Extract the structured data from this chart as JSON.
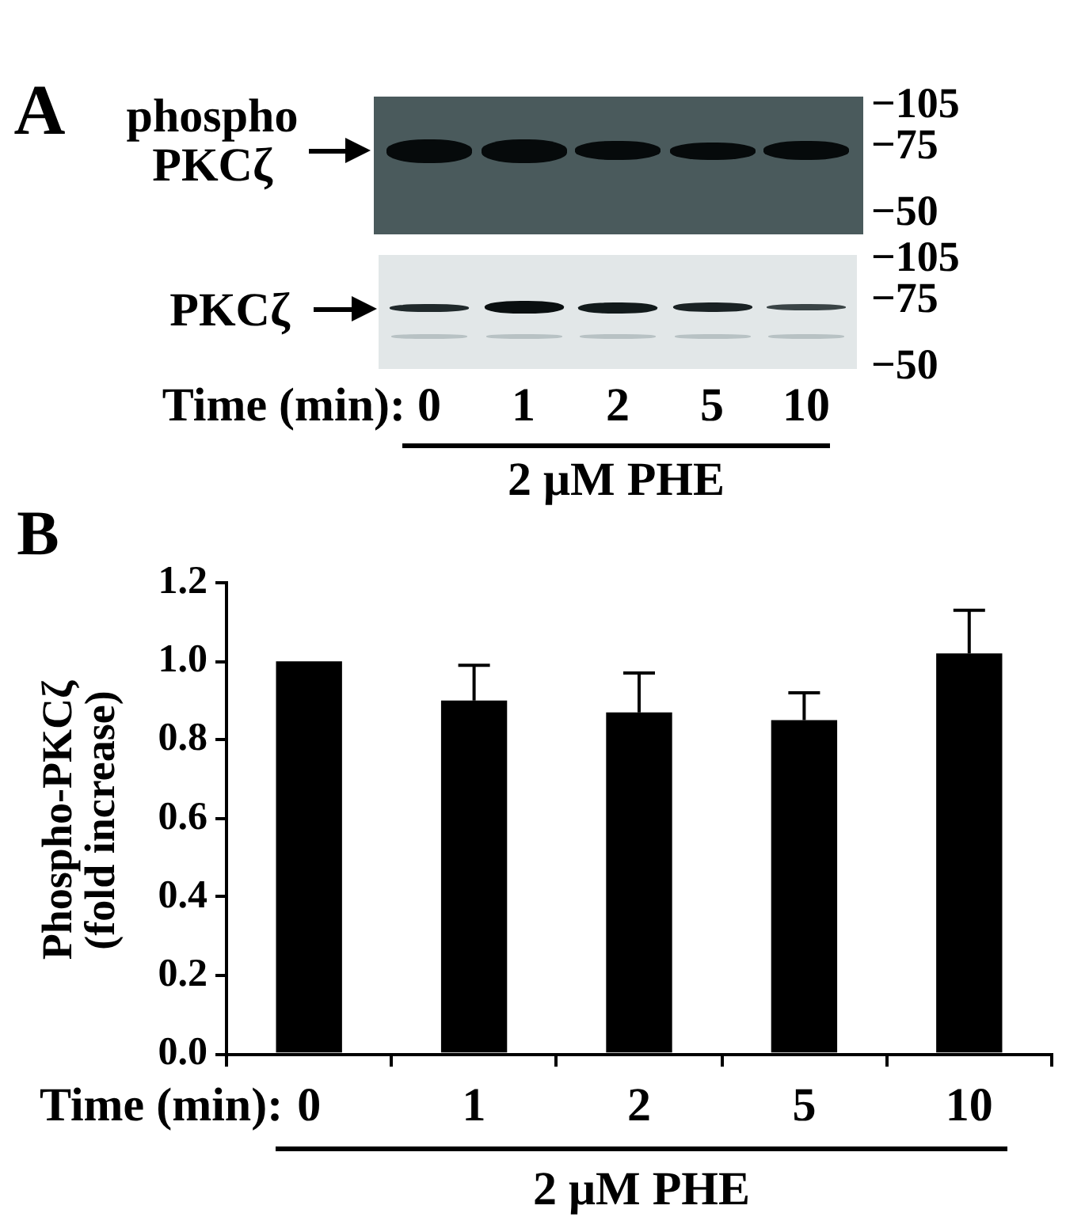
{
  "chart_data": [
    {
      "type": "other",
      "title": "A",
      "categories": [
        "0",
        "1",
        "2",
        "5",
        "10"
      ],
      "xlabel": "Time (min):",
      "annotations": [
        "phospho PKCζ",
        "PKCζ",
        "−105",
        "−75",
        "−50",
        "−105",
        "−75",
        "−50",
        "2 μM PHE"
      ]
    },
    {
      "type": "bar",
      "title": "B",
      "categories": [
        "0",
        "1",
        "2",
        "5",
        "10"
      ],
      "values": [
        1.0,
        0.9,
        0.87,
        0.85,
        1.02
      ],
      "errors": [
        null,
        0.09,
        0.1,
        0.07,
        0.11
      ],
      "color": "#000000",
      "ylim": [
        0,
        1.2
      ],
      "yticks": [
        {
          "value": 0,
          "label": "0.0"
        },
        {
          "value": 0.2,
          "label": "0.2"
        },
        {
          "value": 0.4,
          "label": "0.4"
        },
        {
          "value": 0.6,
          "label": "0.6"
        },
        {
          "value": 0.8,
          "label": "0.8"
        },
        {
          "value": 1.0,
          "label": "1.0"
        },
        {
          "value": 1.2,
          "label": "1.2"
        }
      ],
      "ylabel": "Phospho-PKCζ (fold increase)",
      "xlabel": "Time (min):",
      "annotations": [
        "2 μM PHE"
      ],
      "grid": false,
      "legend": false
    }
  ]
}
